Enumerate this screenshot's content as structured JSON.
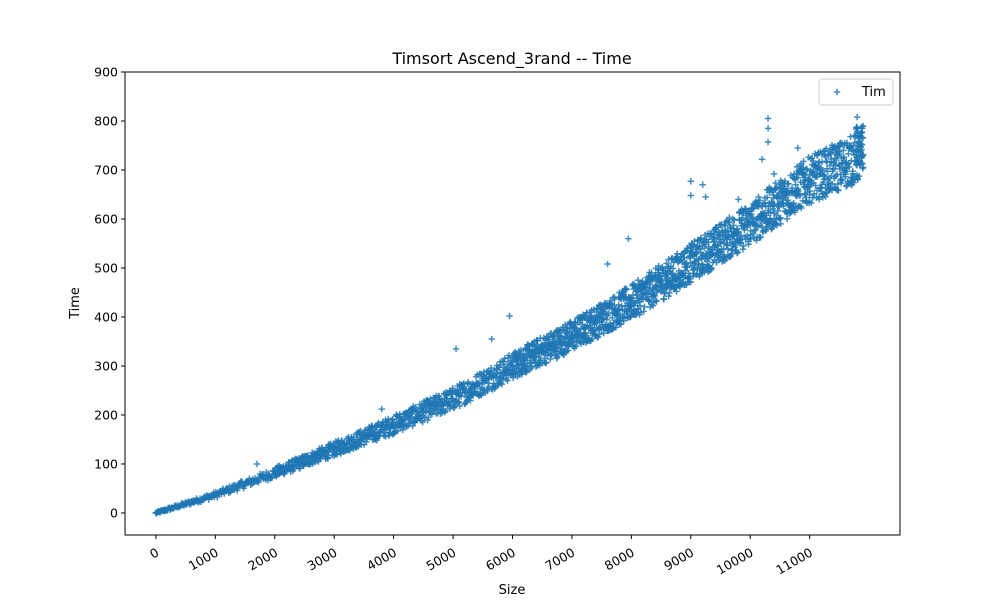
{
  "chart_data": {
    "type": "scatter",
    "title": "Timsort Ascend_3rand -- Time",
    "xlabel": "Size",
    "ylabel": "Time",
    "xlim": [
      -520,
      12520
    ],
    "ylim": [
      -45,
      900
    ],
    "xticks": [
      0,
      1000,
      2000,
      3000,
      4000,
      5000,
      6000,
      7000,
      8000,
      9000,
      10000,
      11000
    ],
    "yticks": [
      0,
      100,
      200,
      300,
      400,
      500,
      600,
      700,
      800,
      900
    ],
    "grid": false,
    "legend_position": "top-right",
    "marker": "plus",
    "series": [
      {
        "name": "Tim",
        "color": "#1f77b4",
        "trend": {
          "x": [
            0,
            1000,
            2000,
            3000,
            4000,
            5000,
            6000,
            7000,
            8000,
            9000,
            10000,
            11000,
            11900
          ],
          "y": [
            0,
            37,
            82,
            130,
            180,
            233,
            300,
            362,
            430,
            510,
            590,
            680,
            730
          ]
        },
        "points": [
          [
            0,
            0
          ],
          [
            50,
            2
          ],
          [
            100,
            4
          ],
          [
            150,
            5
          ],
          [
            200,
            7
          ],
          [
            300,
            10
          ],
          [
            400,
            14
          ],
          [
            500,
            18
          ],
          [
            600,
            22
          ],
          [
            700,
            26
          ],
          [
            800,
            30
          ],
          [
            900,
            33
          ],
          [
            1000,
            37
          ],
          [
            1100,
            42
          ],
          [
            1200,
            46
          ],
          [
            1300,
            50
          ],
          [
            1400,
            55
          ],
          [
            1500,
            59
          ],
          [
            1600,
            64
          ],
          [
            1700,
            68
          ],
          [
            1800,
            73
          ],
          [
            1900,
            77
          ],
          [
            2000,
            82
          ],
          [
            2100,
            86
          ],
          [
            2200,
            91
          ],
          [
            2300,
            96
          ],
          [
            2400,
            101
          ],
          [
            2500,
            106
          ],
          [
            2600,
            111
          ],
          [
            2700,
            116
          ],
          [
            2800,
            121
          ],
          [
            2900,
            126
          ],
          [
            3000,
            130
          ],
          [
            3100,
            135
          ],
          [
            3200,
            140
          ],
          [
            3300,
            145
          ],
          [
            3400,
            150
          ],
          [
            3500,
            155
          ],
          [
            3600,
            160
          ],
          [
            3700,
            165
          ],
          [
            3800,
            170
          ],
          [
            3900,
            175
          ],
          [
            4000,
            180
          ],
          [
            4100,
            185
          ],
          [
            4200,
            190
          ],
          [
            4300,
            196
          ],
          [
            4400,
            201
          ],
          [
            4500,
            207
          ],
          [
            4600,
            212
          ],
          [
            4700,
            217
          ],
          [
            4800,
            222
          ],
          [
            4900,
            228
          ],
          [
            5000,
            233
          ],
          [
            5100,
            240
          ],
          [
            5200,
            246
          ],
          [
            5300,
            253
          ],
          [
            5400,
            260
          ],
          [
            5500,
            266
          ],
          [
            5600,
            273
          ],
          [
            5700,
            280
          ],
          [
            5800,
            286
          ],
          [
            5900,
            293
          ],
          [
            6000,
            300
          ],
          [
            6100,
            306
          ],
          [
            6200,
            312
          ],
          [
            6300,
            318
          ],
          [
            6400,
            325
          ],
          [
            6500,
            331
          ],
          [
            6600,
            337
          ],
          [
            6700,
            343
          ],
          [
            6800,
            349
          ],
          [
            6900,
            356
          ],
          [
            7000,
            362
          ],
          [
            7100,
            369
          ],
          [
            7200,
            375
          ],
          [
            7300,
            382
          ],
          [
            7400,
            389
          ],
          [
            7500,
            396
          ],
          [
            7600,
            403
          ],
          [
            7700,
            409
          ],
          [
            7800,
            416
          ],
          [
            7900,
            423
          ],
          [
            8000,
            430
          ],
          [
            8100,
            438
          ],
          [
            8200,
            446
          ],
          [
            8300,
            454
          ],
          [
            8400,
            462
          ],
          [
            8500,
            470
          ],
          [
            8600,
            478
          ],
          [
            8700,
            486
          ],
          [
            8800,
            494
          ],
          [
            8900,
            502
          ],
          [
            9000,
            510
          ],
          [
            9100,
            518
          ],
          [
            9200,
            526
          ],
          [
            9300,
            534
          ],
          [
            9400,
            542
          ],
          [
            9500,
            550
          ],
          [
            9600,
            558
          ],
          [
            9700,
            566
          ],
          [
            9800,
            574
          ],
          [
            9900,
            582
          ],
          [
            10000,
            590
          ],
          [
            10100,
            599
          ],
          [
            10200,
            608
          ],
          [
            10300,
            617
          ],
          [
            10400,
            626
          ],
          [
            10500,
            635
          ],
          [
            10600,
            644
          ],
          [
            10700,
            653
          ],
          [
            10800,
            662
          ],
          [
            10900,
            671
          ],
          [
            11000,
            680
          ],
          [
            11100,
            686
          ],
          [
            11200,
            692
          ],
          [
            11300,
            697
          ],
          [
            11400,
            703
          ],
          [
            11500,
            708
          ],
          [
            11600,
            714
          ],
          [
            11700,
            719
          ],
          [
            11800,
            725
          ],
          [
            11900,
            730
          ],
          [
            1700,
            100
          ],
          [
            3800,
            212
          ],
          [
            5050,
            335
          ],
          [
            5650,
            355
          ],
          [
            5950,
            402
          ],
          [
            7600,
            508
          ],
          [
            7950,
            560
          ],
          [
            9000,
            677
          ],
          [
            9000,
            648
          ],
          [
            9200,
            670
          ],
          [
            9250,
            645
          ],
          [
            9800,
            640
          ],
          [
            10300,
            805
          ],
          [
            10300,
            785
          ],
          [
            10300,
            757
          ],
          [
            10200,
            722
          ],
          [
            10400,
            692
          ],
          [
            10800,
            745
          ],
          [
            11800,
            808
          ],
          [
            11900,
            790
          ],
          [
            11850,
            770
          ]
        ]
      }
    ]
  }
}
